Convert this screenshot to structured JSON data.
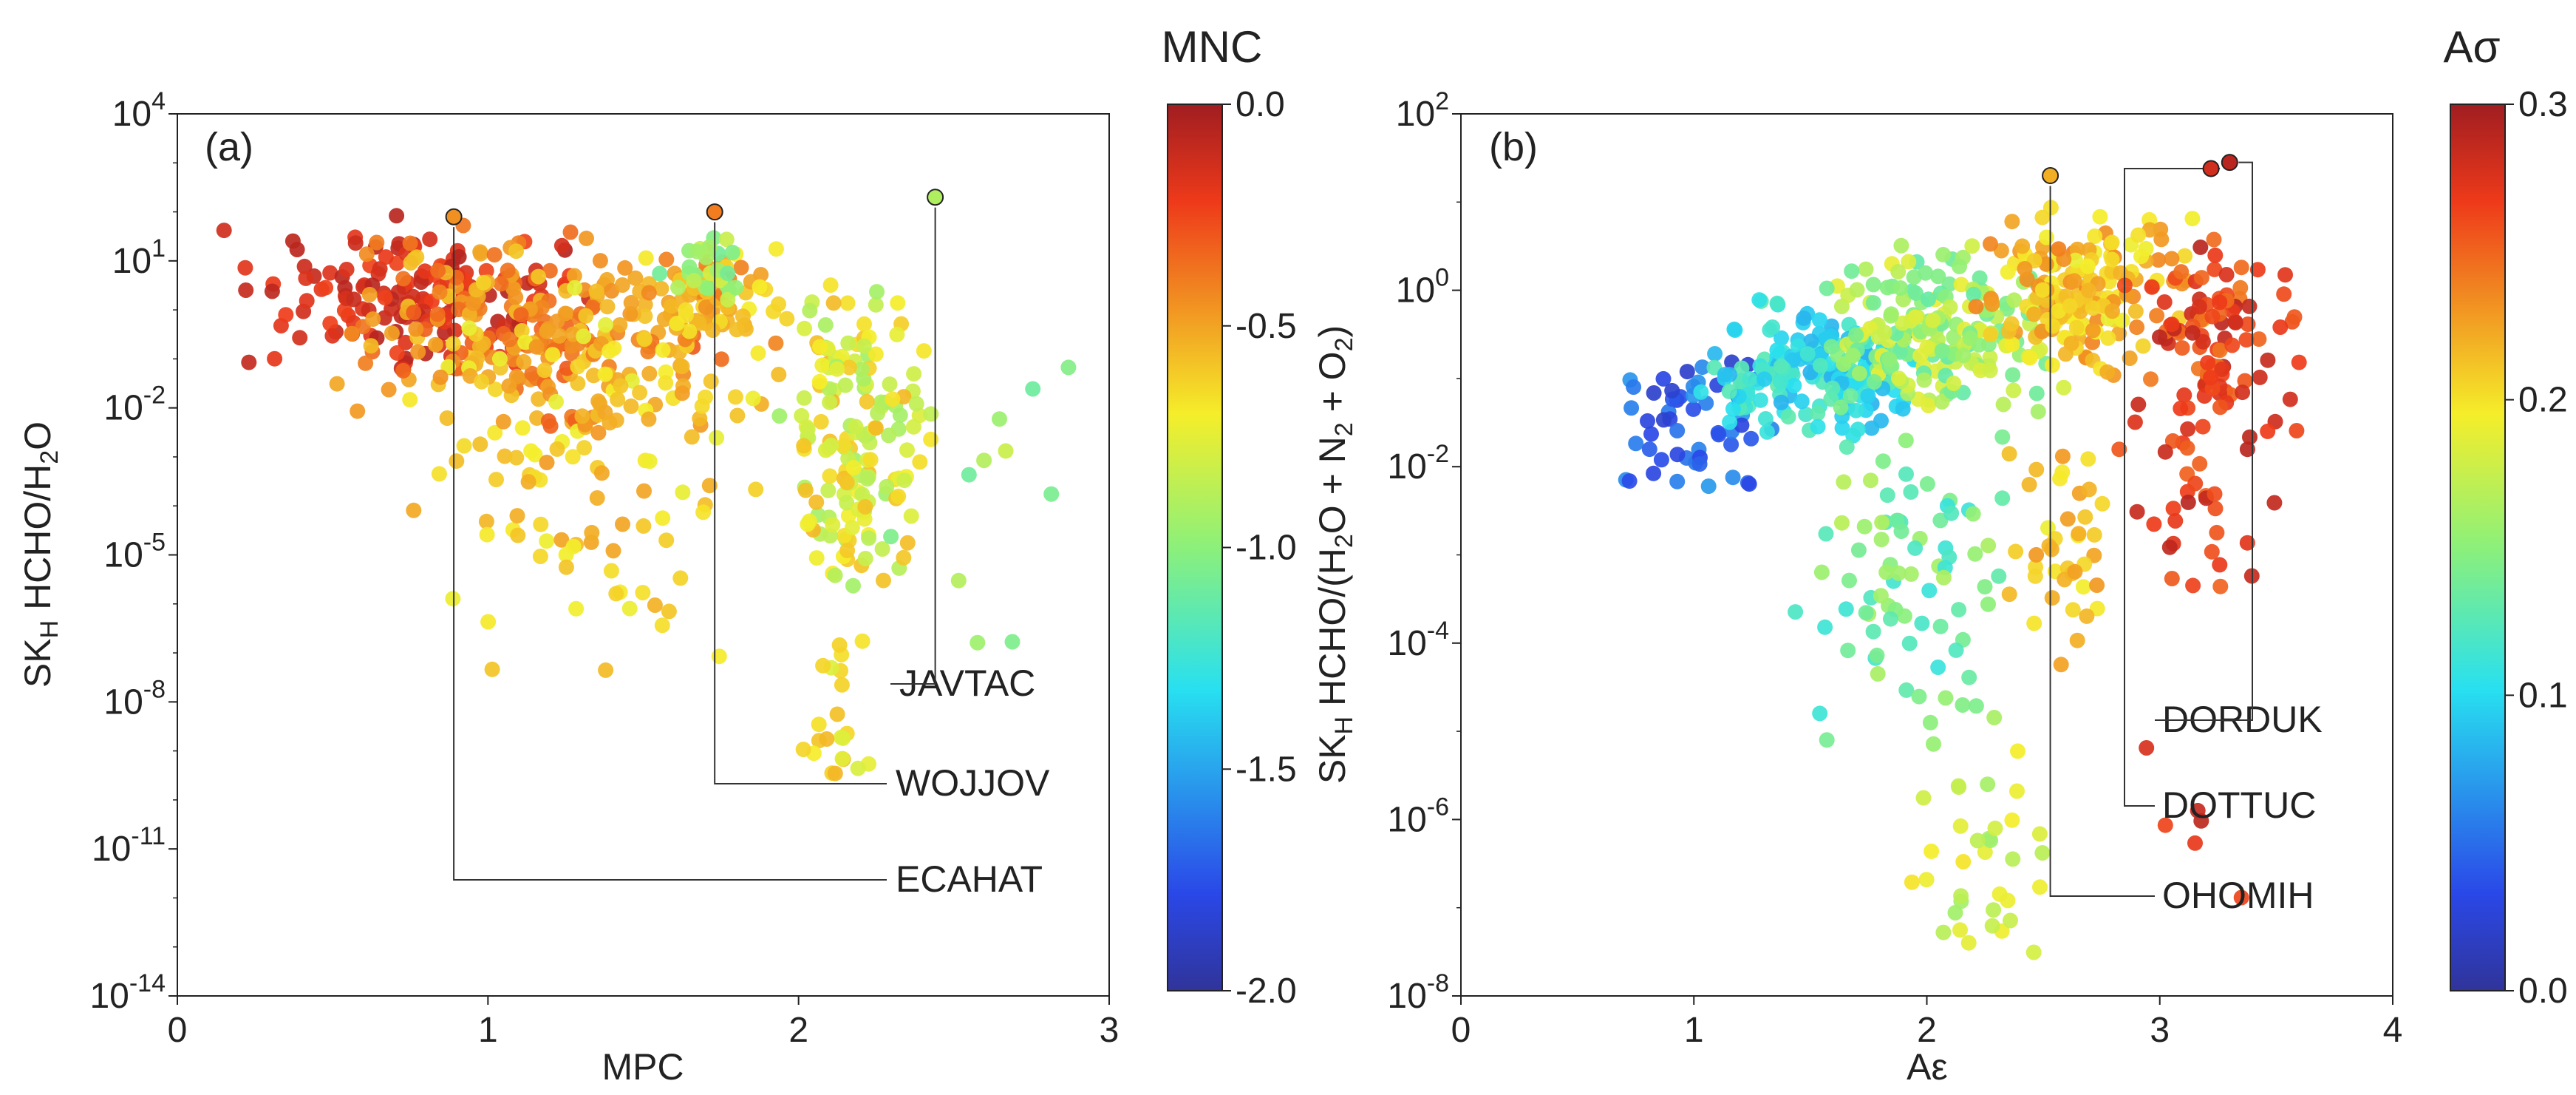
{
  "chart_data": [
    {
      "type": "scatter",
      "panel_label": "(a)",
      "xlabel": "MPC",
      "ylabel": "SK_H HCHO/H2O",
      "ylabel_parts": {
        "a": "SK",
        "b": "H",
        "c": " HCHO/H",
        "d": "2",
        "e": "O"
      },
      "xlim": [
        0,
        3
      ],
      "ylim_log10": [
        -14,
        4
      ],
      "log_y": true,
      "x_ticks": [
        "0",
        "1",
        "2",
        "3"
      ],
      "y_ticks": [
        {
          "base": "10",
          "exp": "4",
          "e": 4
        },
        {
          "base": "10",
          "exp": "1",
          "e": 1
        },
        {
          "base": "10",
          "exp": "-2",
          "e": -2
        },
        {
          "base": "10",
          "exp": "-5",
          "e": -5
        },
        {
          "base": "10",
          "exp": "-8",
          "e": -8
        },
        {
          "base": "10",
          "exp": "-11",
          "e": -11
        },
        {
          "base": "10",
          "exp": "-14",
          "e": -14
        }
      ],
      "colorbar": {
        "title": "MNC",
        "range": [
          -2.0,
          0.0
        ],
        "ticks": [
          "0.0",
          "-0.5",
          "-1.0",
          "-1.5",
          "-2.0"
        ],
        "colormap": "jet"
      },
      "annotations": [
        {
          "text": "JAVTAC",
          "x": 2.44,
          "y_log10": 2.3,
          "c": -0.9
        },
        {
          "text": "WOJJOV",
          "x": 1.73,
          "y_log10": 2.0,
          "c": -0.4
        },
        {
          "text": "ECAHAT",
          "x": 0.89,
          "y_log10": 1.9,
          "c": -0.45
        }
      ],
      "clusters": [
        {
          "x": [
            0.08,
            1.4
          ],
          "y_log10": [
            -1.5,
            2.0
          ],
          "c": [
            -0.25,
            -0.05
          ],
          "n": 150
        },
        {
          "x": [
            0.5,
            1.8
          ],
          "y_log10": [
            -2.5,
            1.8
          ],
          "c": [
            -0.6,
            -0.3
          ],
          "n": 200
        },
        {
          "x": [
            0.7,
            2.0
          ],
          "y_log10": [
            -4.0,
            1.0
          ],
          "c": [
            -0.75,
            -0.45
          ],
          "n": 110
        },
        {
          "x": [
            0.6,
            1.9
          ],
          "y_log10": [
            -8.0,
            -2.0
          ],
          "c": [
            -0.75,
            -0.5
          ],
          "n": 50
        },
        {
          "x": [
            1.4,
            2.0
          ],
          "y_log10": [
            -1.2,
            1.5
          ],
          "c": [
            -0.7,
            -0.4
          ],
          "n": 60
        },
        {
          "x": [
            1.5,
            1.9
          ],
          "y_log10": [
            0.0,
            1.8
          ],
          "c": [
            -1.1,
            -0.8
          ],
          "n": 25
        },
        {
          "x": [
            1.9,
            2.45
          ],
          "y_log10": [
            -6.0,
            0.8
          ],
          "c": [
            -0.95,
            -0.55
          ],
          "n": 160
        },
        {
          "x": [
            2.0,
            2.3
          ],
          "y_log10": [
            -10.0,
            -6.0
          ],
          "c": [
            -0.8,
            -0.55
          ],
          "n": 22
        },
        {
          "x": [
            2.2,
            2.9
          ],
          "y_log10": [
            -7.0,
            -0.5
          ],
          "c": [
            -1.1,
            -0.75
          ],
          "n": 14
        }
      ]
    },
    {
      "type": "scatter",
      "panel_label": "(b)",
      "xlabel": "Aε",
      "ylabel": "SK_H HCHO/(H2O + N2 + O2)",
      "ylabel_parts": {
        "a": "SK",
        "b": "H",
        "c": " HCHO/(H",
        "d": "2",
        "e": "O + N",
        "f": "2",
        "g": " + O",
        "h": "2",
        "i": ")"
      },
      "xlim": [
        0,
        4
      ],
      "ylim_log10": [
        -8,
        2
      ],
      "log_y": true,
      "x_ticks": [
        "0",
        "1",
        "2",
        "3",
        "4"
      ],
      "y_ticks": [
        {
          "base": "10",
          "exp": "2",
          "e": 2
        },
        {
          "base": "10",
          "exp": "0",
          "e": 0
        },
        {
          "base": "10",
          "exp": "-2",
          "e": -2
        },
        {
          "base": "10",
          "exp": "-4",
          "e": -4
        },
        {
          "base": "10",
          "exp": "-6",
          "e": -6
        },
        {
          "base": "10",
          "exp": "-8",
          "e": -8
        }
      ],
      "colorbar": {
        "title": "Aσ",
        "range": [
          0.0,
          0.3
        ],
        "ticks": [
          "0.3",
          "0.2",
          "0.1",
          "0.0"
        ],
        "colormap": "jet"
      },
      "annotations": [
        {
          "text": "DORDUK",
          "x": 3.3,
          "y_log10": 1.45,
          "c": 0.29
        },
        {
          "text": "DOTTUC",
          "x": 3.22,
          "y_log10": 1.38,
          "c": 0.28
        },
        {
          "text": "OHOMIH",
          "x": 2.53,
          "y_log10": 1.3,
          "c": 0.22
        }
      ],
      "clusters": [
        {
          "x": [
            0.6,
            1.4
          ],
          "y_log10": [
            -2.4,
            -0.6
          ],
          "c": [
            0.02,
            0.07
          ],
          "n": 55
        },
        {
          "x": [
            1.0,
            2.0
          ],
          "y_log10": [
            -1.8,
            0.0
          ],
          "c": [
            0.08,
            0.13
          ],
          "n": 170
        },
        {
          "x": [
            1.5,
            2.6
          ],
          "y_log10": [
            -1.5,
            0.6
          ],
          "c": [
            0.13,
            0.19
          ],
          "n": 200
        },
        {
          "x": [
            2.2,
            3.2
          ],
          "y_log10": [
            -1.0,
            1.0
          ],
          "c": [
            0.19,
            0.24
          ],
          "n": 170
        },
        {
          "x": [
            2.8,
            3.7
          ],
          "y_log10": [
            -2.0,
            0.8
          ],
          "c": [
            0.24,
            0.29
          ],
          "n": 100
        },
        {
          "x": [
            1.4,
            2.4
          ],
          "y_log10": [
            -5.5,
            -1.5
          ],
          "c": [
            0.11,
            0.17
          ],
          "n": 80
        },
        {
          "x": [
            1.9,
            2.6
          ],
          "y_log10": [
            -7.8,
            -5.0
          ],
          "c": [
            0.15,
            0.2
          ],
          "n": 35
        },
        {
          "x": [
            2.3,
            2.9
          ],
          "y_log10": [
            -4.5,
            -1.5
          ],
          "c": [
            0.19,
            0.23
          ],
          "n": 40
        },
        {
          "x": [
            2.8,
            3.5
          ],
          "y_log10": [
            -3.5,
            -1.5
          ],
          "c": [
            0.25,
            0.29
          ],
          "n": 30
        },
        {
          "x": [
            2.9,
            3.4
          ],
          "y_log10": [
            -7.5,
            -5.0
          ],
          "c": [
            0.26,
            0.29
          ],
          "n": 6
        }
      ]
    }
  ]
}
